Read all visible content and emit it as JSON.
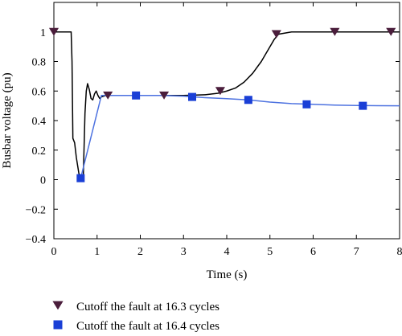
{
  "chart_data": {
    "type": "line",
    "xlabel": "Time (s)",
    "ylabel": "Busbar voltage (pu)",
    "xlim": [
      0,
      8
    ],
    "ylim": [
      -0.4,
      1.2
    ],
    "x_ticks": [
      0,
      1,
      2,
      3,
      4,
      5,
      6,
      7,
      8
    ],
    "y_ticks": [
      -0.4,
      -0.2,
      0,
      0.2,
      0.4,
      0.6,
      0.8,
      1
    ],
    "x_tick_labels": [
      "0",
      "1",
      "2",
      "3",
      "4",
      "5",
      "6",
      "7",
      "8"
    ],
    "y_tick_labels": [
      "−0.4",
      "−0.2",
      "0",
      "0.2",
      "0.4",
      "0.6",
      "0.8",
      "1"
    ],
    "grid": false,
    "legend_position": "below-plot",
    "series": [
      {
        "name": "Cutoff the fault at 16.3 cycles",
        "color": "#000000",
        "marker": "triangle-down",
        "marker_color": "#4a1d3b",
        "x": [
          0,
          0.4,
          0.42,
          0.44,
          0.48,
          0.52,
          0.58,
          0.65,
          0.68,
          0.72,
          0.75,
          0.78,
          0.82,
          0.86,
          0.9,
          0.94,
          0.98,
          1.02,
          1.06,
          1.1,
          1.2,
          1.5,
          2.0,
          2.5,
          3.0,
          3.5,
          3.8,
          4.0,
          4.2,
          4.4,
          4.6,
          4.8,
          5.0,
          5.1,
          5.2,
          5.5,
          6.0,
          6.5,
          7.0,
          7.5,
          8.0
        ],
        "y": [
          1,
          1,
          0.8,
          0.28,
          0.25,
          0.15,
          0.04,
          0.01,
          0.01,
          0.45,
          0.6,
          0.65,
          0.61,
          0.55,
          0.54,
          0.58,
          0.6,
          0.57,
          0.55,
          0.56,
          0.57,
          0.57,
          0.57,
          0.57,
          0.57,
          0.575,
          0.585,
          0.6,
          0.62,
          0.66,
          0.72,
          0.8,
          0.9,
          0.95,
          0.985,
          1,
          1,
          1,
          1,
          1,
          1
        ],
        "marker_x": [
          0,
          1.25,
          2.55,
          3.85,
          5.15,
          6.5,
          7.8
        ],
        "marker_y": [
          1,
          0.57,
          0.57,
          0.6,
          0.985,
          1,
          1
        ]
      },
      {
        "name": "Cutoff the fault at 16.4 cycles",
        "color": "#4d72e0",
        "marker": "square",
        "marker_color": "#1a3fd6",
        "x": [
          0.62,
          1.1,
          1.5,
          2.0,
          2.5,
          3.0,
          3.5,
          4.0,
          4.5,
          5.0,
          5.5,
          6.0,
          6.5,
          7.0,
          7.5,
          8.0
        ],
        "y": [
          0.01,
          0.57,
          0.57,
          0.57,
          0.57,
          0.565,
          0.555,
          0.548,
          0.54,
          0.525,
          0.515,
          0.51,
          0.505,
          0.502,
          0.501,
          0.5
        ],
        "marker_x": [
          0.62,
          1.9,
          3.2,
          4.5,
          5.85,
          7.15
        ],
        "marker_y": [
          0.01,
          0.57,
          0.56,
          0.54,
          0.51,
          0.5
        ]
      }
    ]
  }
}
